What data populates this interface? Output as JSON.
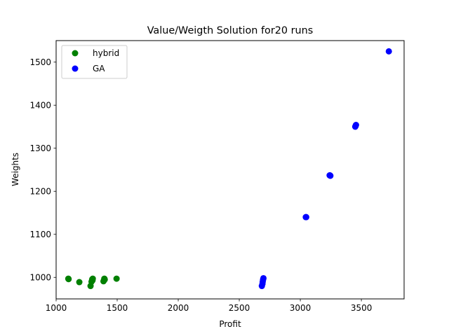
{
  "chart_data": {
    "type": "scatter",
    "title": "Value/Weigth Solution for20 runs",
    "xlabel": "Profit",
    "ylabel": "Weights",
    "xlim": [
      1000,
      3850
    ],
    "ylim": [
      950,
      1550
    ],
    "xticks": [
      1000,
      1500,
      2000,
      2500,
      3000,
      3500
    ],
    "yticks": [
      1000,
      1100,
      1200,
      1300,
      1400,
      1500
    ],
    "grid": false,
    "legend_position": "top-left",
    "series": [
      {
        "name": "hybrid",
        "color": "#008000",
        "points": [
          {
            "x": 1100,
            "y": 997
          },
          {
            "x": 1102,
            "y": 996
          },
          {
            "x": 1190,
            "y": 989
          },
          {
            "x": 1282,
            "y": 980
          },
          {
            "x": 1290,
            "y": 990
          },
          {
            "x": 1295,
            "y": 995
          },
          {
            "x": 1300,
            "y": 997
          },
          {
            "x": 1298,
            "y": 993
          },
          {
            "x": 1388,
            "y": 991
          },
          {
            "x": 1392,
            "y": 993
          },
          {
            "x": 1395,
            "y": 997
          },
          {
            "x": 1398,
            "y": 995
          },
          {
            "x": 1495,
            "y": 997
          }
        ]
      },
      {
        "name": "GA",
        "color": "#0000ff",
        "points": [
          {
            "x": 2685,
            "y": 980
          },
          {
            "x": 2690,
            "y": 985
          },
          {
            "x": 2692,
            "y": 990
          },
          {
            "x": 2695,
            "y": 995
          },
          {
            "x": 2698,
            "y": 998
          },
          {
            "x": 3045,
            "y": 1140
          },
          {
            "x": 3048,
            "y": 1140
          },
          {
            "x": 3240,
            "y": 1237
          },
          {
            "x": 3243,
            "y": 1237
          },
          {
            "x": 3246,
            "y": 1236
          },
          {
            "x": 3450,
            "y": 1350
          },
          {
            "x": 3453,
            "y": 1352
          },
          {
            "x": 3456,
            "y": 1354
          },
          {
            "x": 3725,
            "y": 1525
          }
        ]
      }
    ]
  }
}
